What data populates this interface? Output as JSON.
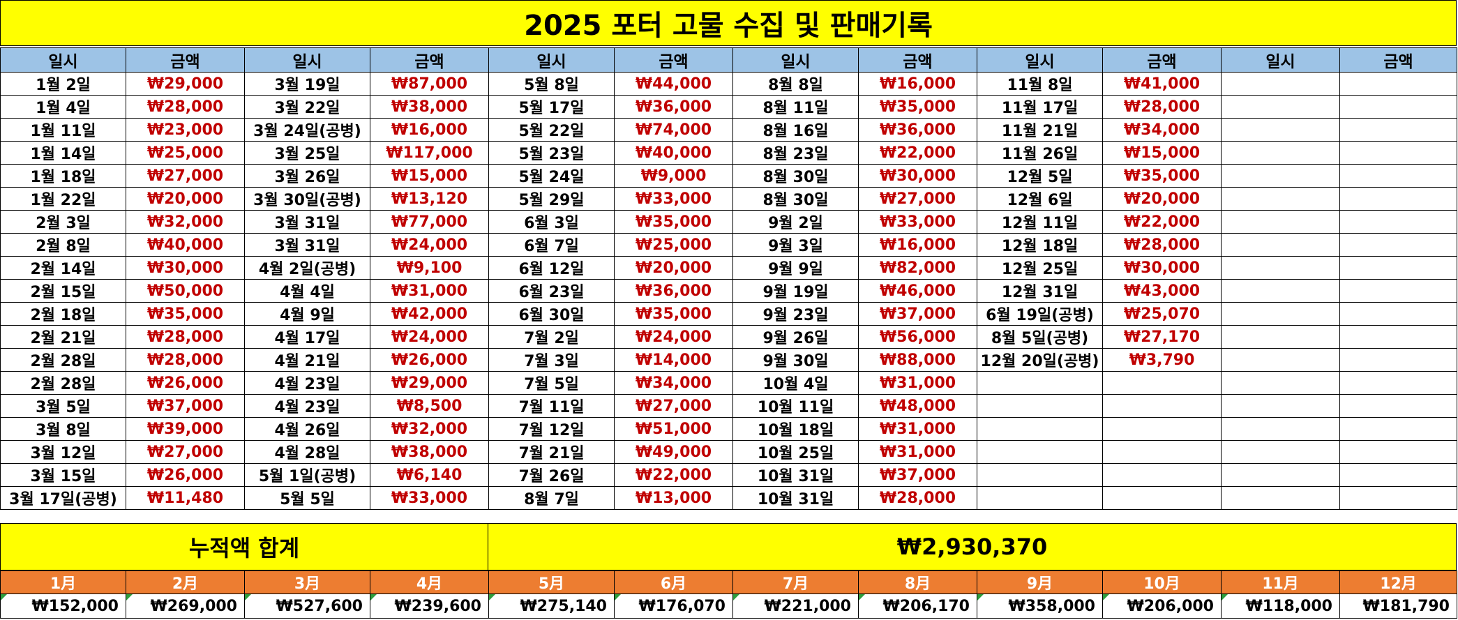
{
  "title": "2025 포터 고물 수집 및 판매기록",
  "headers": [
    "일시",
    "금액",
    "일시",
    "금액",
    "일시",
    "금액",
    "일시",
    "금액",
    "일시",
    "금액",
    "일시",
    "금액"
  ],
  "rows": [
    [
      "1월 2일",
      "₩29,000",
      "3월 19일",
      "₩87,000",
      "5월 8일",
      "₩44,000",
      "8월 8일",
      "₩16,000",
      "11월 8일",
      "₩41,000",
      "",
      ""
    ],
    [
      "1월 4일",
      "₩28,000",
      "3월 22일",
      "₩38,000",
      "5월 17일",
      "₩36,000",
      "8월 11일",
      "₩35,000",
      "11월 17일",
      "₩28,000",
      "",
      ""
    ],
    [
      "1월 11일",
      "₩23,000",
      "3월 24일(공병)",
      "₩16,000",
      "5월 22일",
      "₩74,000",
      "8월 16일",
      "₩36,000",
      "11월 21일",
      "₩34,000",
      "",
      ""
    ],
    [
      "1월 14일",
      "₩25,000",
      "3월 25일",
      "₩117,000",
      "5월 23일",
      "₩40,000",
      "8월 23일",
      "₩22,000",
      "11월 26일",
      "₩15,000",
      "",
      ""
    ],
    [
      "1월 18일",
      "₩27,000",
      "3월 26일",
      "₩15,000",
      "5월 24일",
      "₩9,000",
      "8월 30일",
      "₩30,000",
      "12월 5일",
      "₩35,000",
      "",
      ""
    ],
    [
      "1월 22일",
      "₩20,000",
      "3월 30일(공병)",
      "₩13,120",
      "5월 29일",
      "₩33,000",
      "8월 30일",
      "₩27,000",
      "12월 6일",
      "₩20,000",
      "",
      ""
    ],
    [
      "2월 3일",
      "₩32,000",
      "3월 31일",
      "₩77,000",
      "6월 3일",
      "₩35,000",
      "9월 2일",
      "₩33,000",
      "12월 11일",
      "₩22,000",
      "",
      ""
    ],
    [
      "2월 8일",
      "₩40,000",
      "3월 31일",
      "₩24,000",
      "6월 7일",
      "₩25,000",
      "9월 3일",
      "₩16,000",
      "12월 18일",
      "₩28,000",
      "",
      ""
    ],
    [
      "2월 14일",
      "₩30,000",
      "4월 2일(공병)",
      "₩9,100",
      "6월 12일",
      "₩20,000",
      "9월 9일",
      "₩82,000",
      "12월 25일",
      "₩30,000",
      "",
      ""
    ],
    [
      "2월 15일",
      "₩50,000",
      "4월 4일",
      "₩31,000",
      "6월 23일",
      "₩36,000",
      "9월 19일",
      "₩46,000",
      "12월 31일",
      "₩43,000",
      "",
      ""
    ],
    [
      "2월 18일",
      "₩35,000",
      "4월 9일",
      "₩42,000",
      "6월 30일",
      "₩35,000",
      "9월 23일",
      "₩37,000",
      "6월 19일(공병)",
      "₩25,070",
      "",
      ""
    ],
    [
      "2월 21일",
      "₩28,000",
      "4월 17일",
      "₩24,000",
      "7월 2일",
      "₩24,000",
      "9월 26일",
      "₩56,000",
      "8월 5일(공병)",
      "₩27,170",
      "",
      ""
    ],
    [
      "2월 28일",
      "₩28,000",
      "4월 21일",
      "₩26,000",
      "7월 3일",
      "₩14,000",
      "9월 30일",
      "₩88,000",
      "12월 20일(공병)",
      "₩3,790",
      "",
      ""
    ],
    [
      "2월 28일",
      "₩26,000",
      "4월 23일",
      "₩29,000",
      "7월 5일",
      "₩34,000",
      "10월 4일",
      "₩31,000",
      "",
      "",
      "",
      ""
    ],
    [
      "3월 5일",
      "₩37,000",
      "4월 23일",
      "₩8,500",
      "7월 11일",
      "₩27,000",
      "10월 11일",
      "₩48,000",
      "",
      "",
      "",
      ""
    ],
    [
      "3월 8일",
      "₩39,000",
      "4월 26일",
      "₩32,000",
      "7월 12일",
      "₩51,000",
      "10월 18일",
      "₩31,000",
      "",
      "",
      "",
      ""
    ],
    [
      "3월 12일",
      "₩27,000",
      "4월 28일",
      "₩38,000",
      "7월 21일",
      "₩49,000",
      "10월 25일",
      "₩31,000",
      "",
      "",
      "",
      ""
    ],
    [
      "3월 15일",
      "₩26,000",
      "5월 1일(공병)",
      "₩6,140",
      "7월 26일",
      "₩22,000",
      "10월 31일",
      "₩37,000",
      "",
      "",
      "",
      ""
    ],
    [
      "3월 17일(공병)",
      "₩11,480",
      "5월 5일",
      "₩33,000",
      "8월 7일",
      "₩13,000",
      "10월 31일",
      "₩28,000",
      "",
      "",
      "",
      ""
    ]
  ],
  "summary": {
    "label": "누적액 합계",
    "value": "₩2,930,370"
  },
  "months": [
    "1月",
    "2月",
    "3月",
    "4月",
    "5月",
    "6月",
    "7月",
    "8月",
    "9月",
    "10月",
    "11月",
    "12月"
  ],
  "month_totals": [
    "₩152,000",
    "₩269,000",
    "₩527,600",
    "₩239,600",
    "₩275,140",
    "₩176,070",
    "₩221,000",
    "₩206,170",
    "₩358,000",
    "₩206,000",
    "₩118,000",
    "₩181,790"
  ],
  "colors": {
    "title_bg": "#ffff00",
    "header_bg": "#9dc3e6",
    "amount_text": "#c00000",
    "month_bg": "#ed7d31",
    "flag": "#2e9e3e"
  }
}
